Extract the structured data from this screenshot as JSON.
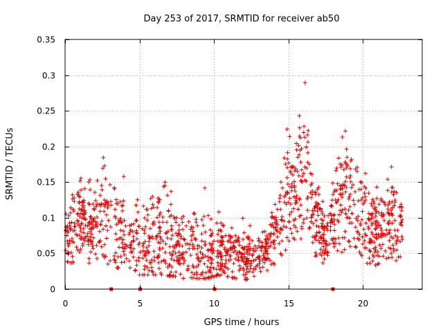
{
  "colors": {
    "series": "#e00000",
    "grid": "#a0a0a0",
    "axis": "#000000"
  },
  "chart_data": {
    "type": "scatter",
    "title": "Day 253 of 2017, SRMTID for receiver ab50",
    "xlabel": "GPS time / hours",
    "ylabel": "SRMTID / TECUs",
    "xlim": [
      0,
      24
    ],
    "ylim": [
      0,
      0.35
    ],
    "grid": true,
    "x_ticks": [
      0,
      5,
      10,
      15,
      20
    ],
    "x_tick_labels": [
      "0",
      "5",
      "10",
      "15",
      "20"
    ],
    "y_ticks": [
      0,
      0.05,
      0.1,
      0.15,
      0.2,
      0.25,
      0.3,
      0.35
    ],
    "y_tick_labels": [
      "0",
      "0.05",
      "0.1",
      "0.15",
      "0.2",
      "0.25",
      "0.3",
      "0.35"
    ],
    "marker": "plus",
    "gap_markers_x": [
      3.1,
      5.05,
      10.05,
      18.0
    ],
    "envelope": [
      {
        "x": 0.0,
        "base": 0.085,
        "lo": 0.04,
        "hi": 0.175
      },
      {
        "x": 1.0,
        "base": 0.095,
        "lo": 0.03,
        "hi": 0.16
      },
      {
        "x": 2.0,
        "base": 0.09,
        "lo": 0.04,
        "hi": 0.15
      },
      {
        "x": 2.5,
        "base": 0.11,
        "lo": 0.05,
        "hi": 0.19
      },
      {
        "x": 3.0,
        "base": 0.075,
        "lo": 0.03,
        "hi": 0.17
      },
      {
        "x": 3.8,
        "base": 0.08,
        "lo": 0.03,
        "hi": 0.18
      },
      {
        "x": 4.5,
        "base": 0.065,
        "lo": 0.025,
        "hi": 0.12
      },
      {
        "x": 5.0,
        "base": 0.07,
        "lo": 0.02,
        "hi": 0.15
      },
      {
        "x": 6.5,
        "base": 0.06,
        "lo": 0.02,
        "hi": 0.165
      },
      {
        "x": 8.0,
        "base": 0.05,
        "lo": 0.015,
        "hi": 0.13
      },
      {
        "x": 9.5,
        "base": 0.045,
        "lo": 0.015,
        "hi": 0.17
      },
      {
        "x": 10.5,
        "base": 0.05,
        "lo": 0.02,
        "hi": 0.11
      },
      {
        "x": 12.0,
        "base": 0.045,
        "lo": 0.012,
        "hi": 0.1
      },
      {
        "x": 13.5,
        "base": 0.055,
        "lo": 0.025,
        "hi": 0.1
      },
      {
        "x": 14.5,
        "base": 0.09,
        "lo": 0.04,
        "hi": 0.15
      },
      {
        "x": 15.0,
        "base": 0.14,
        "lo": 0.06,
        "hi": 0.24
      },
      {
        "x": 15.5,
        "base": 0.12,
        "lo": 0.05,
        "hi": 0.2
      },
      {
        "x": 16.0,
        "base": 0.16,
        "lo": 0.06,
        "hi": 0.34
      },
      {
        "x": 16.5,
        "base": 0.12,
        "lo": 0.05,
        "hi": 0.2
      },
      {
        "x": 17.0,
        "base": 0.1,
        "lo": 0.04,
        "hi": 0.16
      },
      {
        "x": 17.5,
        "base": 0.065,
        "lo": 0.035,
        "hi": 0.1
      },
      {
        "x": 18.5,
        "base": 0.12,
        "lo": 0.05,
        "hi": 0.2
      },
      {
        "x": 19.0,
        "base": 0.14,
        "lo": 0.06,
        "hi": 0.25
      },
      {
        "x": 19.5,
        "base": 0.11,
        "lo": 0.06,
        "hi": 0.24
      },
      {
        "x": 20.5,
        "base": 0.075,
        "lo": 0.03,
        "hi": 0.14
      },
      {
        "x": 21.5,
        "base": 0.095,
        "lo": 0.04,
        "hi": 0.175
      },
      {
        "x": 22.7,
        "base": 0.085,
        "lo": 0.04,
        "hi": 0.165
      }
    ],
    "gaps": [
      [
        3.12,
        3.3
      ],
      [
        5.05,
        5.15
      ],
      [
        10.0,
        10.12
      ]
    ],
    "x_end": 22.7,
    "n_points": 1500
  }
}
